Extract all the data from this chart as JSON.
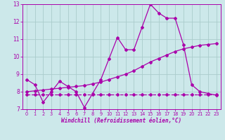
{
  "xlabel": "Windchill (Refroidissement éolien,°C)",
  "bg_color": "#cce8ea",
  "grid_color": "#aacccc",
  "line_color": "#aa00aa",
  "x": [
    0,
    1,
    2,
    3,
    4,
    5,
    6,
    7,
    8,
    9,
    10,
    11,
    12,
    13,
    14,
    15,
    16,
    17,
    18,
    19,
    20,
    21,
    22,
    23
  ],
  "line1": [
    8.7,
    8.4,
    7.4,
    8.0,
    8.6,
    8.3,
    8.0,
    7.1,
    7.9,
    8.7,
    9.9,
    11.1,
    10.4,
    10.4,
    11.7,
    13.0,
    12.5,
    12.2,
    12.2,
    10.7,
    8.4,
    8.0,
    7.9,
    7.8
  ],
  "line2": [
    8.0,
    8.05,
    8.1,
    8.15,
    8.2,
    8.25,
    8.3,
    8.35,
    8.45,
    8.55,
    8.7,
    8.85,
    9.0,
    9.2,
    9.45,
    9.7,
    9.9,
    10.1,
    10.3,
    10.45,
    10.55,
    10.65,
    10.7,
    10.75
  ],
  "line3": [
    7.85,
    7.85,
    7.85,
    7.85,
    7.85,
    7.85,
    7.85,
    7.85,
    7.85,
    7.85,
    7.85,
    7.85,
    7.85,
    7.85,
    7.85,
    7.85,
    7.85,
    7.85,
    7.85,
    7.85,
    7.85,
    7.85,
    7.85,
    7.85
  ],
  "ylim": [
    7.0,
    13.0
  ],
  "xlim": [
    -0.5,
    23.5
  ],
  "yticks": [
    7,
    8,
    9,
    10,
    11,
    12,
    13
  ],
  "xticks": [
    0,
    1,
    2,
    3,
    4,
    5,
    6,
    7,
    8,
    9,
    10,
    11,
    12,
    13,
    14,
    15,
    16,
    17,
    18,
    19,
    20,
    21,
    22,
    23
  ]
}
